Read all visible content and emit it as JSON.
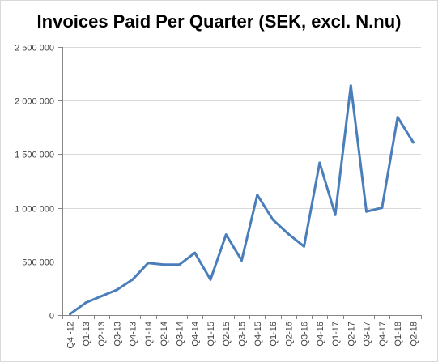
{
  "chart_data": {
    "type": "line",
    "title": "Invoices Paid Per Quarter (SEK, excl. N.nu)",
    "xlabel": "",
    "ylabel": "",
    "categories": [
      "Q4 -12",
      "Q1-13",
      "Q2-13",
      "Q3-13",
      "Q4-13",
      "Q1-14",
      "Q2-14",
      "Q3-14",
      "Q4-14",
      "Q1-15",
      "Q2-15",
      "Q3-15",
      "Q4-15",
      "Q1-16",
      "Q2-16",
      "Q3-16",
      "Q4-16",
      "Q1-17",
      "Q2-17",
      "Q3-17",
      "Q4-17",
      "Q1-18",
      "Q2-18"
    ],
    "series": [
      {
        "color": "#4a7ebb",
        "values": [
          10000,
          115000,
          175000,
          235000,
          330000,
          485000,
          470000,
          470000,
          580000,
          330000,
          750000,
          510000,
          1120000,
          890000,
          755000,
          640000,
          1420000,
          935000,
          2140000,
          965000,
          1000000,
          1845000,
          1610000
        ]
      }
    ],
    "ylim": [
      0,
      2500000
    ],
    "yticks": [
      0,
      500000,
      1000000,
      1500000,
      2000000,
      2500000
    ],
    "ytick_labels": [
      "0",
      "500 000",
      "1 000 000",
      "1 500 000",
      "2 000 000",
      "2 500 000"
    ],
    "grid": true
  }
}
